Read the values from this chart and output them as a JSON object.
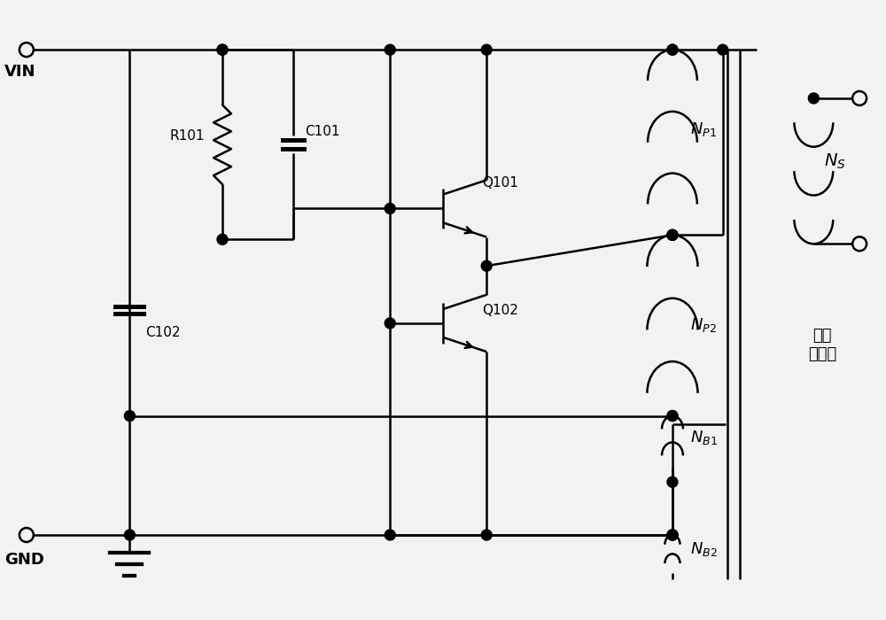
{
  "bg_color": "#f2f2f2",
  "lc": "#000000",
  "lw": 1.8,
  "labels": {
    "VIN": "VIN",
    "GND": "GND",
    "R101": "R101",
    "C101": "C101",
    "C102": "C102",
    "Q101": "Q101",
    "Q102": "Q102",
    "NP1": "$N_{P1}$",
    "NP2": "$N_{P2}$",
    "NB1": "$N_{B1}$",
    "NB2": "$N_{B2}$",
    "NS": "$N_S$",
    "transformer": "耦合\n变压器"
  },
  "figsize": [
    10.0,
    7.0
  ],
  "dpi": 100,
  "xlim": [
    0,
    10
  ],
  "ylim": [
    0,
    7
  ]
}
